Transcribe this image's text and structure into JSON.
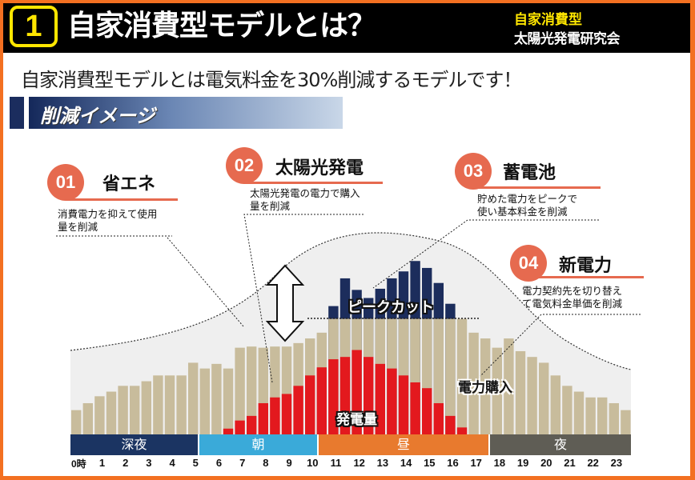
{
  "header": {
    "number": "1",
    "title": "自家消費型モデルとは？",
    "org_line1": "自家消費型",
    "org_line2": "太陽光発電研究会"
  },
  "lead": "自家消費型モデルとは電気料金を30%削減するモデルです！",
  "section_title": "削減イメージ",
  "colors": {
    "frame": "#f37021",
    "consumption": "#c8bc9c",
    "generation": "#e3191e",
    "peak_cut": "#1c2d5c",
    "callout": "#e66a4f",
    "curve_fill": "#efefef"
  },
  "callouts": [
    {
      "num": "01",
      "title": "省エネ",
      "desc1": "消費電力を抑えて使用",
      "desc2": "量を削減"
    },
    {
      "num": "02",
      "title": "太陽光発電",
      "desc1": "太陽光発電の電力で購入",
      "desc2": "量を削減"
    },
    {
      "num": "03",
      "title": "蓄電池",
      "desc1": "貯めた電力をピークで",
      "desc2": "使い基本料金を削減"
    },
    {
      "num": "04",
      "title": "新電力",
      "desc1": "電力契約先を切り替え",
      "desc2": "て電気料金単価を削減"
    }
  ],
  "chart_data": {
    "type": "bar",
    "x_unit": "30分",
    "hour_labels": [
      "0時",
      "1",
      "2",
      "3",
      "4",
      "5",
      "6",
      "7",
      "8",
      "9",
      "10",
      "11",
      "12",
      "13",
      "14",
      "15",
      "16",
      "17",
      "18",
      "19",
      "20",
      "21",
      "22",
      "23"
    ],
    "periods": [
      {
        "label": "深夜",
        "from": 0,
        "to": 6,
        "color": "#1b3462"
      },
      {
        "label": "朝",
        "from": 6,
        "to": 11,
        "color": "#3aaad9"
      },
      {
        "label": "昼",
        "from": 11,
        "to": 18,
        "color": "#e87a2e"
      },
      {
        "label": "夜",
        "from": 18,
        "to": 24,
        "color": "#5f5d55"
      }
    ],
    "series": [
      {
        "name": "電力購入",
        "values": [
          21,
          27,
          33,
          37,
          42,
          42,
          46,
          51,
          51,
          51,
          62,
          57,
          61,
          57,
          75,
          76,
          75,
          76,
          76,
          79,
          83,
          88,
          100,
          100,
          100,
          100,
          100,
          100,
          100,
          100,
          100,
          100,
          100,
          100,
          88,
          83,
          75,
          83,
          72,
          67,
          62,
          51,
          42,
          37,
          32,
          32,
          27,
          21
        ]
      },
      {
        "name": "発電量",
        "start_index": 13,
        "values": [
          5,
          12,
          16,
          27,
          32,
          35,
          42,
          51,
          58,
          65,
          67,
          73,
          67,
          61,
          57,
          51,
          45,
          40,
          27,
          16,
          6
        ]
      },
      {
        "name": "ピークカット",
        "start_index": 22,
        "values": [
          111,
          135,
          125,
          118,
          126,
          135,
          141,
          150,
          144,
          131,
          113
        ]
      }
    ],
    "peak_cut_level": 100,
    "annotations": [
      "ピークカット",
      "発電量",
      "電力購入"
    ]
  }
}
